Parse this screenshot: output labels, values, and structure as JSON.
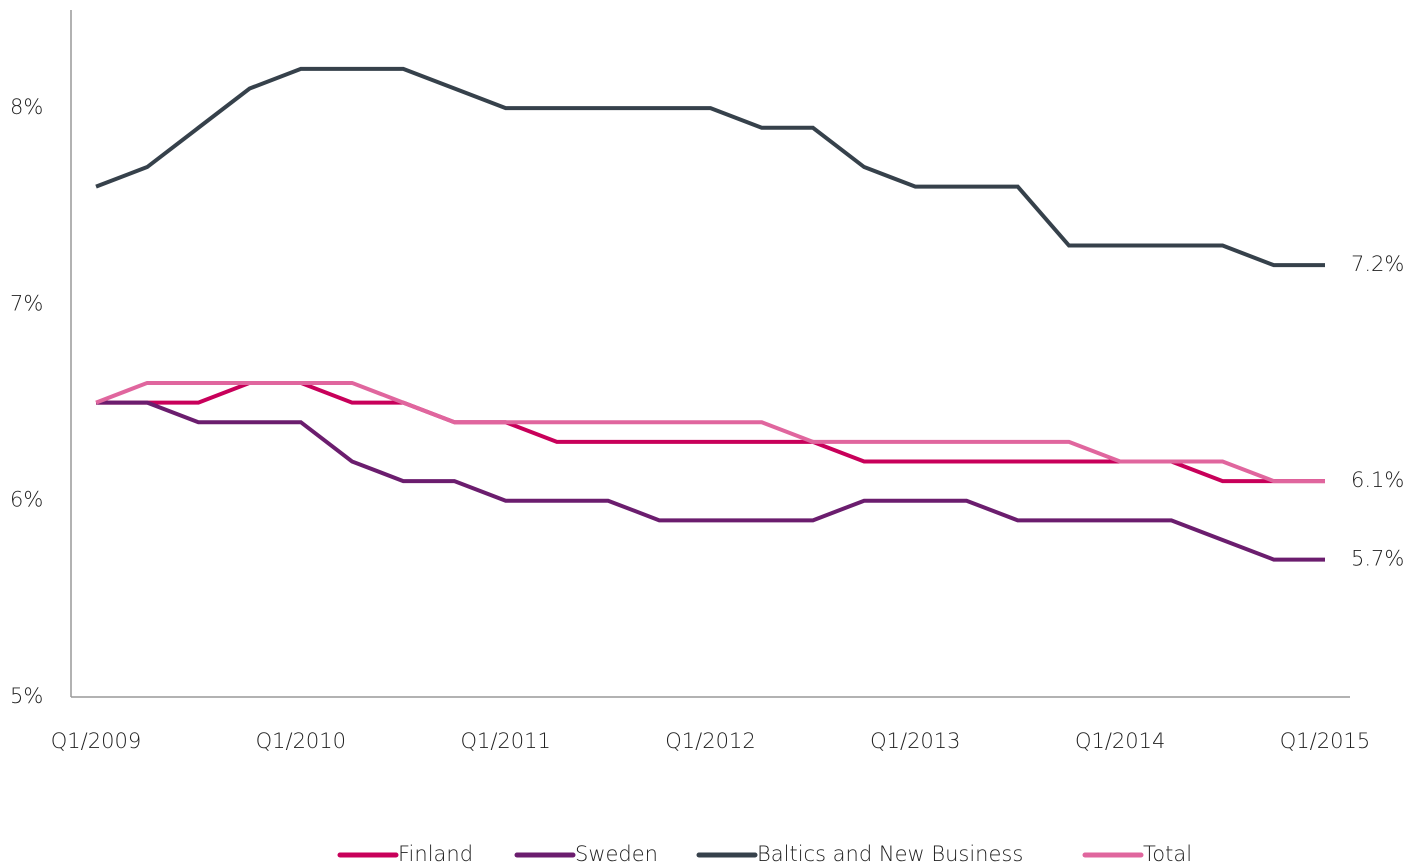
{
  "chart_data": {
    "type": "line",
    "categories": [
      "Q1/2009",
      null,
      null,
      null,
      "Q1/2010",
      null,
      null,
      null,
      "Q1/2011",
      null,
      null,
      null,
      "Q1/2012",
      null,
      null,
      null,
      "Q1/2013",
      null,
      null,
      null,
      "Q1/2014",
      null,
      null,
      null,
      "Q1/2015"
    ],
    "series": [
      {
        "name": "Finland",
        "color": "#c8005a",
        "values": [
          6.5,
          6.5,
          6.5,
          6.6,
          6.6,
          6.5,
          6.5,
          6.4,
          6.4,
          6.3,
          6.3,
          6.3,
          6.3,
          6.3,
          6.3,
          6.2,
          6.2,
          6.2,
          6.2,
          6.2,
          6.2,
          6.2,
          6.1,
          6.1,
          6.1
        ]
      },
      {
        "name": "Sweden",
        "color": "#6b1d6e",
        "values": [
          6.5,
          6.5,
          6.4,
          6.4,
          6.4,
          6.2,
          6.1,
          6.1,
          6.0,
          6.0,
          6.0,
          5.9,
          5.9,
          5.9,
          5.9,
          6.0,
          6.0,
          6.0,
          5.9,
          5.9,
          5.9,
          5.9,
          5.8,
          5.7,
          5.7
        ],
        "value_labels": [
          null,
          null,
          null,
          null,
          null,
          null,
          null,
          null,
          null,
          null,
          null,
          null,
          null,
          null,
          null,
          null,
          null,
          null,
          null,
          null,
          null,
          null,
          null,
          null,
          "5.7%"
        ]
      },
      {
        "name": "Baltics and New Business",
        "color": "#36414b",
        "values": [
          7.6,
          7.7,
          7.9,
          8.1,
          8.2,
          8.2,
          8.2,
          8.1,
          8.0,
          8.0,
          8.0,
          8.0,
          8.0,
          7.9,
          7.9,
          7.7,
          7.6,
          7.6,
          7.6,
          7.3,
          7.3,
          7.3,
          7.3,
          7.2,
          7.2
        ],
        "value_labels": [
          null,
          null,
          null,
          null,
          null,
          null,
          null,
          null,
          null,
          null,
          null,
          null,
          null,
          null,
          null,
          null,
          null,
          null,
          null,
          null,
          null,
          null,
          null,
          null,
          "7.2%"
        ]
      },
      {
        "name": "Total",
        "color": "#e0669e",
        "values": [
          6.5,
          6.6,
          6.6,
          6.6,
          6.6,
          6.6,
          6.5,
          6.4,
          6.4,
          6.4,
          6.4,
          6.4,
          6.4,
          6.4,
          6.3,
          6.3,
          6.3,
          6.3,
          6.3,
          6.3,
          6.2,
          6.2,
          6.2,
          6.1,
          6.1
        ],
        "value_labels": [
          null,
          null,
          null,
          null,
          null,
          null,
          null,
          null,
          null,
          null,
          null,
          null,
          null,
          null,
          null,
          null,
          null,
          null,
          null,
          null,
          null,
          null,
          null,
          null,
          "6.1%"
        ]
      }
    ],
    "ylim": [
      5,
      8.5
    ],
    "yticks": [
      {
        "value": 5,
        "label": "5%"
      },
      {
        "value": 6,
        "label": "6%"
      },
      {
        "value": 7,
        "label": "7%"
      },
      {
        "value": 8,
        "label": "8%"
      }
    ],
    "grid": false
  }
}
